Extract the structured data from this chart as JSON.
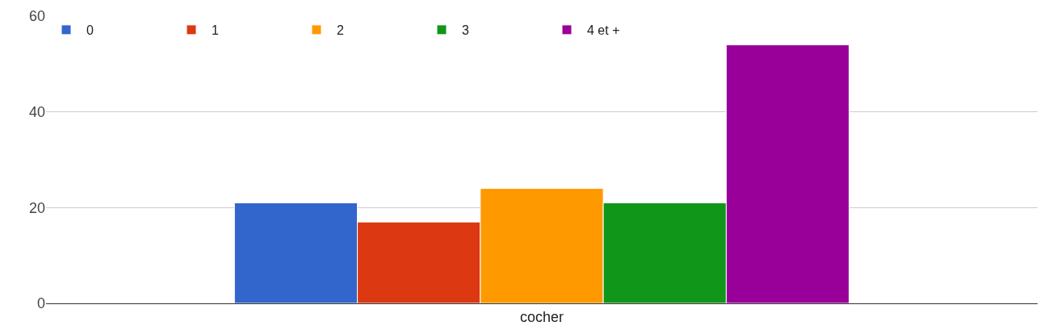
{
  "chart_data": {
    "type": "bar",
    "categories": [
      "cocher"
    ],
    "series": [
      {
        "name": "0",
        "color": "#3366cc",
        "values": [
          21
        ]
      },
      {
        "name": "1",
        "color": "#dc3912",
        "values": [
          17
        ]
      },
      {
        "name": "2",
        "color": "#ff9900",
        "values": [
          24
        ]
      },
      {
        "name": "3",
        "color": "#109618",
        "values": [
          21
        ]
      },
      {
        "name": "4 et +",
        "color": "#990099",
        "values": [
          54
        ]
      }
    ],
    "ylim": [
      0,
      60
    ],
    "yticks": [
      0,
      20,
      40,
      60
    ],
    "grid": "y",
    "legend": "top left"
  }
}
